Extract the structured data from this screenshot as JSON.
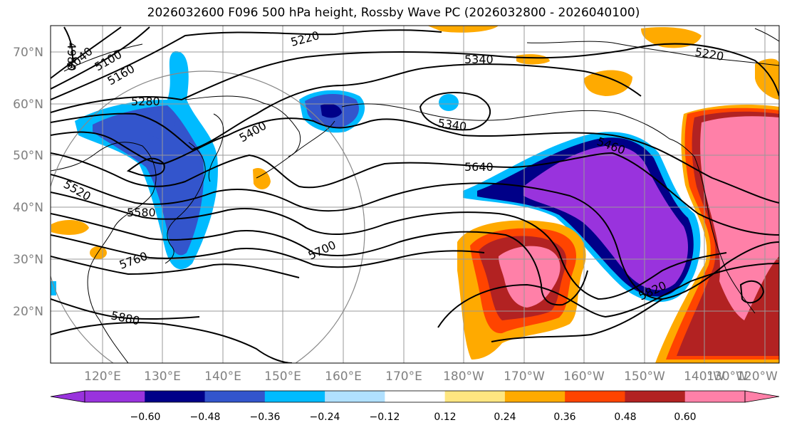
{
  "title": "2026032600 F096 500 hPa height, Rossby Wave PC (2026032800 - 2026040100)",
  "map": {
    "lat_labels": [
      "70°N",
      "60°N",
      "50°N",
      "40°N",
      "30°N",
      "20°N"
    ],
    "lon_labels": [
      "120°E",
      "130°E",
      "140°E",
      "150°E",
      "160°E",
      "170°E",
      "180°W",
      "170°W",
      "160°W",
      "150°W",
      "140°W",
      "130°W",
      "120°W"
    ],
    "contour_labels": [
      "4980",
      "5040",
      "5100",
      "5160",
      "5220",
      "5220",
      "5280",
      "5340",
      "5340",
      "5400",
      "5460",
      "5520",
      "5580",
      "5640",
      "5700",
      "5760",
      "5820",
      "5880"
    ]
  },
  "colorbar": {
    "ticks": [
      "−0.60",
      "−0.48",
      "−0.36",
      "−0.24",
      "−0.12",
      "0.12",
      "0.24",
      "0.36",
      "0.48",
      "0.60"
    ],
    "colors": [
      "#9933dd",
      "#000088",
      "#3355cc",
      "#00bbff",
      "#b0e0ff",
      "#ffffff",
      "#ffe680",
      "#ffaa00",
      "#ff4400",
      "#b22222",
      "#ff80a8"
    ]
  }
}
